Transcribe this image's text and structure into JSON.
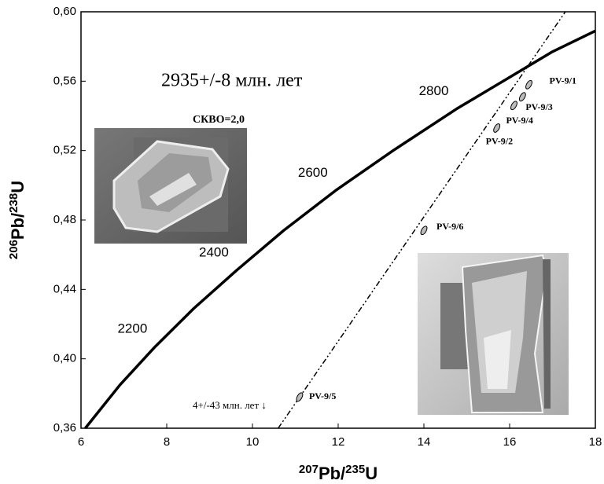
{
  "chart_data": {
    "type": "line",
    "xlim": [
      6,
      18
    ],
    "ylim": [
      0.36,
      0.6
    ],
    "xticks": [
      6,
      8,
      10,
      12,
      14,
      16,
      18
    ],
    "yticks": [
      {
        "value": 0.36,
        "label": "0,36"
      },
      {
        "value": 0.4,
        "label": "0,40"
      },
      {
        "value": 0.44,
        "label": "0,44"
      },
      {
        "value": 0.48,
        "label": "0,48"
      },
      {
        "value": 0.52,
        "label": "0,52"
      },
      {
        "value": 0.56,
        "label": "0,56"
      },
      {
        "value": 0.6,
        "label": "0,60"
      }
    ],
    "x_label": [
      "207",
      "Pb/",
      "235",
      "U"
    ],
    "y_label": [
      "206",
      "Pb/",
      "238",
      "U"
    ],
    "annotations": [
      "2935+/-8 млн. лет",
      "СКВО=2,0",
      "4+/-43 млн. лет ↓"
    ],
    "concordia": {
      "color": "#000000",
      "x": [
        6.1,
        6.91,
        7.73,
        8.63,
        9.63,
        10.73,
        11.94,
        13.28,
        14.76,
        16.39,
        17.0,
        18.0
      ],
      "y": [
        0.36,
        0.385,
        0.407,
        0.429,
        0.451,
        0.474,
        0.497,
        0.52,
        0.544,
        0.568,
        0.577,
        0.589
      ],
      "point_labels": [
        null,
        null,
        "2200",
        null,
        "2400",
        null,
        "2600",
        null,
        "2800",
        null,
        null,
        null
      ]
    },
    "discordia": {
      "color": "#000000",
      "x": [
        10.6,
        17.3
      ],
      "y": [
        0.36,
        0.6
      ]
    },
    "points": {
      "labels": [
        "PV-9/1",
        "PV-9/3",
        "PV-9/4",
        "PV-9/2",
        "PV-9/6",
        "PV-9/5"
      ],
      "x": [
        16.45,
        16.3,
        16.1,
        15.7,
        14.0,
        11.1
      ],
      "y": [
        0.558,
        0.551,
        0.546,
        0.533,
        0.474,
        0.378
      ]
    }
  }
}
